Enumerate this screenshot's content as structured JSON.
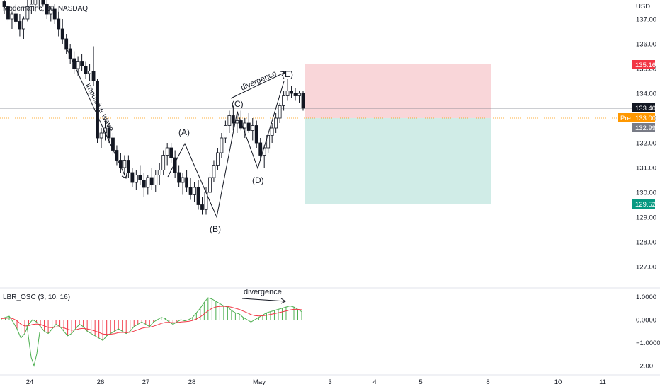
{
  "header": {
    "symbol_title": "Moderna Inc, 30, NASDAQ"
  },
  "price_axis": {
    "currency": "USD",
    "ticks": [
      "137.00",
      "136.00",
      "135.00",
      "134.00",
      "133.00",
      "132.00",
      "131.00",
      "130.00",
      "129.00",
      "128.00",
      "127.00"
    ]
  },
  "time_axis": {
    "ticks": [
      "24",
      "26",
      "27",
      "28",
      "May",
      "3",
      "4",
      "5",
      "8",
      "10",
      "11"
    ]
  },
  "price_tags": {
    "stop": {
      "text": "135.16",
      "color": "#f23645"
    },
    "last": {
      "text": "133.40",
      "color": "#131722"
    },
    "pre_label": "Pre",
    "pre": {
      "text": "133.00",
      "color": "#ff9800"
    },
    "close": {
      "text": "132.99",
      "color": "#787b86"
    },
    "target": {
      "text": "129.52",
      "color": "#089981"
    }
  },
  "annotations": {
    "impulsive": "impulsive wave",
    "divergence_price": "divergence",
    "divergence_osc": "divergence",
    "wave_a": "(A)",
    "wave_b": "(B)",
    "wave_c": "(C)",
    "wave_d": "(D)",
    "wave_e": "(E)"
  },
  "oscillator": {
    "title": "LBR_OSC (3, 10, 16)",
    "ticks": [
      "1.0000",
      "0.0000",
      "−1.0000",
      "−2.00"
    ],
    "colors": {
      "positive": "#4caf50",
      "negative": "#f23645",
      "fast": "#4caf50",
      "slow": "#f23645"
    }
  },
  "colors": {
    "risk_zone": "#f7c8cc",
    "reward_zone": "#c8e9e3",
    "candle": "#131722",
    "last_line": "#787b86",
    "pre_line": "#ff9800"
  },
  "chart_data": {
    "type": "candlestick",
    "title": "Moderna Inc, 30, NASDAQ",
    "ylabel": "USD",
    "ylim": [
      126.3,
      137.5
    ],
    "x_labels": [
      "24",
      "26",
      "27",
      "28",
      "May",
      "3",
      "4",
      "5",
      "8",
      "10",
      "11"
    ],
    "candles": [
      [
        137.7,
        138.0,
        137.2,
        137.5
      ],
      [
        137.5,
        137.6,
        136.9,
        137.0
      ],
      [
        137.0,
        137.3,
        136.6,
        137.2
      ],
      [
        137.2,
        137.6,
        136.8,
        136.9
      ],
      [
        136.9,
        137.2,
        136.3,
        136.6
      ],
      [
        136.6,
        137.1,
        136.2,
        137.0
      ],
      [
        137.0,
        137.8,
        136.9,
        137.5
      ],
      [
        137.5,
        138.0,
        137.2,
        137.6
      ],
      [
        137.6,
        138.0,
        137.3,
        137.8
      ],
      [
        137.8,
        138.0,
        137.4,
        137.9
      ],
      [
        137.9,
        138.0,
        137.5,
        137.6
      ],
      [
        137.6,
        137.8,
        137.0,
        137.2
      ],
      [
        137.2,
        137.5,
        136.9,
        137.4
      ],
      [
        137.4,
        137.6,
        136.8,
        137.0
      ],
      [
        137.0,
        137.3,
        136.3,
        136.6
      ],
      [
        136.6,
        137.0,
        136.0,
        136.2
      ],
      [
        136.2,
        136.4,
        135.6,
        135.8
      ],
      [
        135.8,
        136.0,
        135.2,
        135.4
      ],
      [
        135.4,
        135.7,
        134.8,
        135.0
      ],
      [
        135.0,
        135.5,
        134.7,
        135.3
      ],
      [
        135.3,
        135.6,
        134.9,
        135.1
      ],
      [
        135.1,
        135.3,
        134.6,
        134.8
      ],
      [
        134.8,
        135.2,
        134.5,
        134.9
      ],
      [
        134.9,
        135.9,
        134.3,
        134.5
      ],
      [
        134.5,
        134.6,
        132.0,
        132.2
      ],
      [
        132.2,
        132.6,
        131.8,
        132.4
      ],
      [
        132.4,
        132.9,
        132.1,
        132.6
      ],
      [
        132.6,
        132.8,
        132.0,
        132.2
      ],
      [
        132.2,
        132.4,
        131.5,
        131.7
      ],
      [
        131.7,
        131.9,
        131.1,
        131.3
      ],
      [
        131.3,
        131.6,
        130.8,
        131.0
      ],
      [
        131.0,
        131.5,
        130.7,
        131.3
      ],
      [
        131.3,
        131.5,
        130.6,
        130.8
      ],
      [
        130.8,
        131.0,
        130.2,
        130.4
      ],
      [
        130.4,
        130.9,
        130.1,
        130.7
      ],
      [
        130.7,
        131.1,
        130.3,
        130.5
      ],
      [
        130.5,
        130.8,
        129.8,
        130.2
      ],
      [
        130.2,
        130.7,
        129.9,
        130.6
      ],
      [
        130.6,
        131.0,
        130.1,
        130.3
      ],
      [
        130.3,
        130.9,
        130.0,
        130.7
      ],
      [
        130.7,
        131.2,
        130.3,
        130.9
      ],
      [
        130.9,
        131.7,
        130.7,
        131.5
      ],
      [
        131.5,
        132.0,
        131.1,
        131.8
      ],
      [
        131.8,
        132.0,
        131.2,
        131.4
      ],
      [
        131.4,
        131.7,
        130.6,
        130.8
      ],
      [
        130.8,
        131.1,
        130.2,
        130.4
      ],
      [
        130.4,
        130.8,
        129.9,
        130.6
      ],
      [
        130.6,
        130.9,
        130.0,
        130.2
      ],
      [
        130.2,
        130.6,
        129.7,
        129.9
      ],
      [
        129.9,
        130.4,
        129.6,
        130.2
      ],
      [
        130.2,
        130.5,
        129.3,
        129.5
      ],
      [
        129.5,
        129.8,
        129.1,
        129.3
      ],
      [
        129.3,
        130.2,
        129.1,
        130.0
      ],
      [
        130.0,
        130.8,
        129.8,
        130.6
      ],
      [
        130.6,
        131.3,
        130.4,
        131.1
      ],
      [
        131.1,
        131.8,
        130.9,
        131.6
      ],
      [
        131.6,
        132.4,
        131.4,
        132.2
      ],
      [
        132.2,
        132.9,
        132.0,
        132.7
      ],
      [
        132.7,
        133.3,
        132.4,
        133.1
      ],
      [
        133.1,
        133.5,
        132.5,
        132.8
      ],
      [
        132.8,
        133.2,
        132.4,
        132.9
      ],
      [
        132.9,
        133.3,
        132.5,
        132.6
      ],
      [
        132.6,
        133.0,
        132.2,
        132.8
      ],
      [
        132.8,
        133.2,
        132.4,
        132.5
      ],
      [
        132.5,
        133.0,
        132.1,
        132.7
      ],
      [
        132.7,
        132.9,
        131.8,
        132.0
      ],
      [
        132.0,
        132.2,
        131.3,
        131.5
      ],
      [
        131.5,
        131.9,
        131.0,
        131.8
      ],
      [
        131.8,
        132.4,
        131.6,
        132.3
      ],
      [
        132.3,
        132.8,
        132.0,
        132.6
      ],
      [
        132.6,
        133.2,
        132.4,
        133.0
      ],
      [
        133.0,
        133.6,
        132.8,
        133.5
      ],
      [
        133.5,
        134.1,
        133.3,
        133.9
      ],
      [
        133.9,
        134.6,
        133.7,
        134.1
      ],
      [
        134.1,
        134.3,
        133.8,
        134.0
      ],
      [
        134.0,
        134.2,
        133.7,
        133.9
      ],
      [
        133.9,
        134.1,
        133.6,
        134.0
      ],
      [
        134.0,
        134.1,
        133.3,
        133.4
      ]
    ],
    "risk_reward": {
      "entry": 133.0,
      "stop": 135.16,
      "target": 129.52
    },
    "last_price": 133.4,
    "pre_price": 133.0,
    "oscillator_values": [
      0.05,
      0.1,
      0.15,
      -0.1,
      -0.4,
      -0.8,
      -0.6,
      -0.2,
      0.0,
      -0.1,
      -0.3,
      -0.5,
      -0.6,
      -0.4,
      -0.2,
      -0.3,
      -0.5,
      -0.7,
      -0.6,
      -0.4,
      -0.2,
      -0.3,
      -0.5,
      -0.6,
      -0.7,
      -0.8,
      -0.9,
      -0.7,
      -0.6,
      -0.5,
      -0.4,
      -0.5,
      -0.6,
      -0.5,
      -0.3,
      -0.2,
      -0.1,
      -0.2,
      -0.3,
      -0.1,
      0.0,
      0.1,
      0.05,
      -0.1,
      -0.2,
      -0.1,
      0.0,
      -0.05,
      0.0,
      0.1,
      0.3,
      0.5,
      0.75,
      0.95,
      0.9,
      0.8,
      0.7,
      0.6,
      0.55,
      0.4,
      0.3,
      0.25,
      0.1,
      0.0,
      -0.1,
      0.0,
      0.1,
      0.2,
      0.3,
      0.35,
      0.4,
      0.45,
      0.5,
      0.55,
      0.6,
      0.55,
      0.45,
      0.35
    ]
  }
}
